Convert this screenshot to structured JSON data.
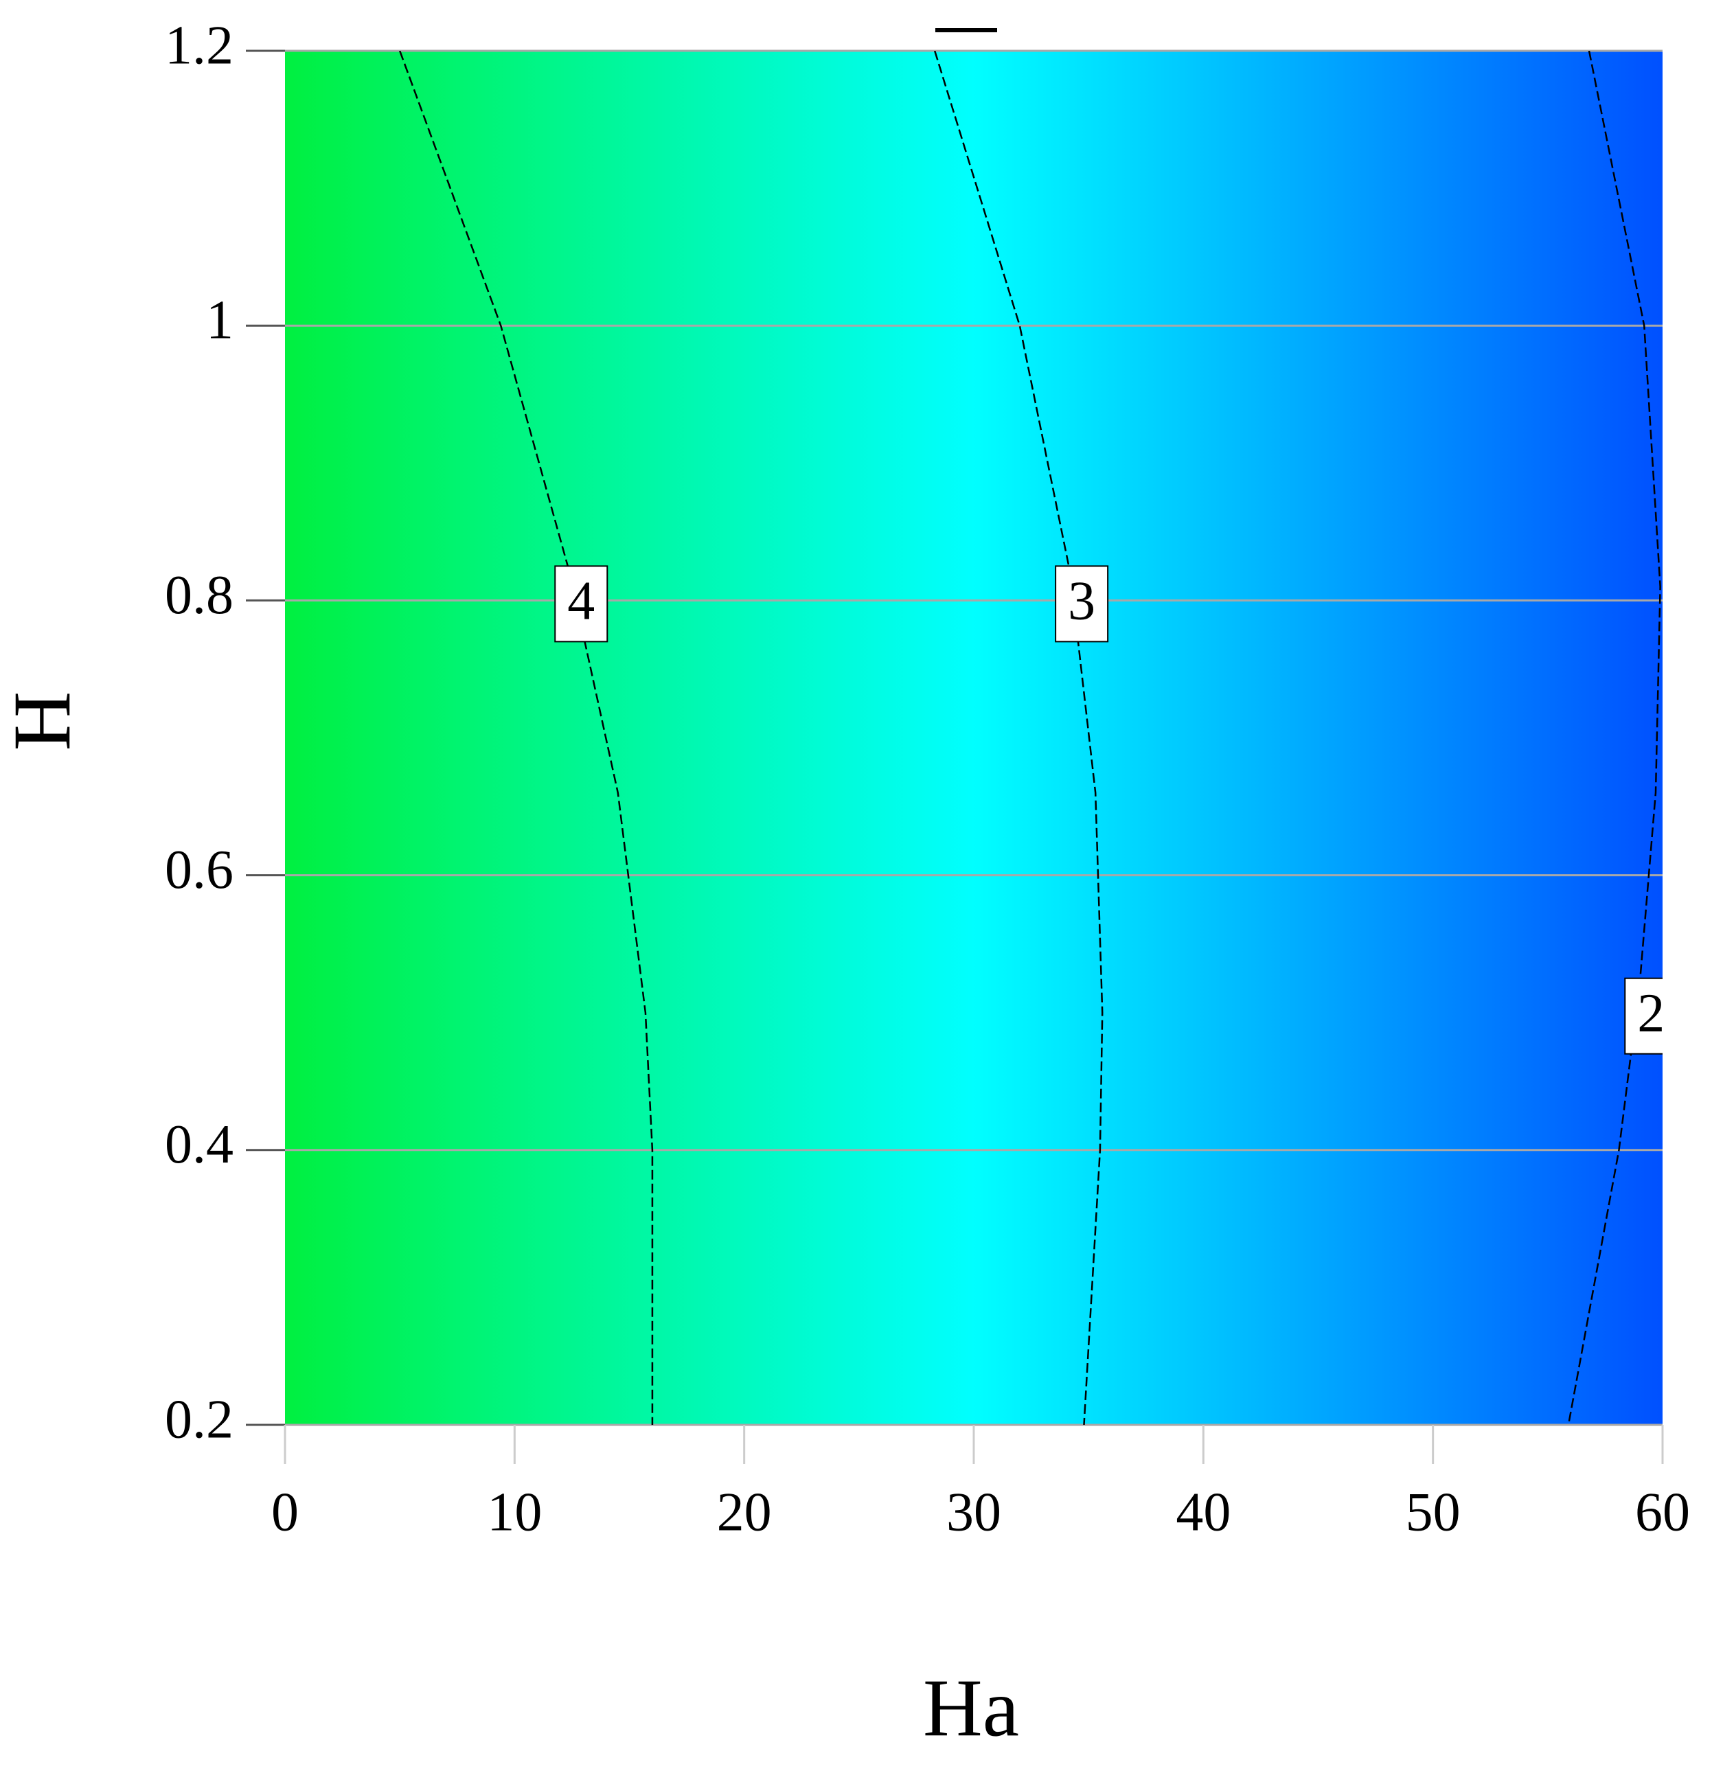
{
  "chart_data": {
    "type": "contour",
    "x_label": "Ha",
    "y_label": "H",
    "xlim": [
      0,
      60
    ],
    "ylim": [
      0.2,
      1.2
    ],
    "xticks": [
      0,
      10,
      20,
      30,
      40,
      50,
      60
    ],
    "yticks": [
      0.2,
      0.4,
      0.6,
      0.8,
      1,
      1.2
    ],
    "grid": true,
    "colors": [
      "#00f040",
      "#00ffff",
      "#0050ff"
    ],
    "contours": [
      {
        "level": 4,
        "x": [
          5.0,
          9.4,
          12.4,
          14.5,
          15.7,
          16.0,
          16.0
        ],
        "y": [
          1.2,
          1.0,
          0.82,
          0.66,
          0.5,
          0.4,
          0.2
        ]
      },
      {
        "level": 3,
        "x": [
          28.3,
          32.0,
          34.2,
          35.3,
          35.6,
          35.5,
          34.8
        ],
        "y": [
          1.2,
          1.0,
          0.82,
          0.66,
          0.5,
          0.4,
          0.2
        ]
      },
      {
        "level": 2,
        "x": [
          56.8,
          59.2,
          59.9,
          59.7,
          59.0,
          58.1,
          55.9
        ],
        "y": [
          1.2,
          1.0,
          0.81,
          0.66,
          0.52,
          0.4,
          0.2
        ]
      }
    ]
  }
}
